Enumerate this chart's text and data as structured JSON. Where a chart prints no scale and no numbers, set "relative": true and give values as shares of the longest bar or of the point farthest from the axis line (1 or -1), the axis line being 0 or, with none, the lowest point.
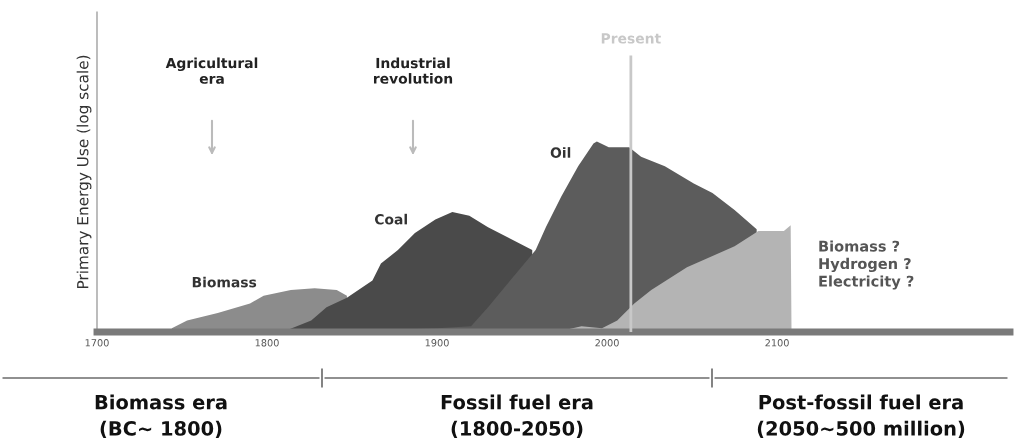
{
  "chart_data": {
    "type": "area",
    "relative": true,
    "ylabel": "Primary Energy Use (log scale)",
    "xlim": [
      1700,
      2237
    ],
    "xticks": [
      1700,
      1800,
      1900,
      2000,
      2100
    ],
    "grid": false,
    "legend": false,
    "tick_labels": "x",
    "series": [
      {
        "name": "Biomass",
        "color": "#8c8c8c",
        "x": [
          1744,
          1753,
          1771,
          1790,
          1798,
          1814,
          1828,
          1841,
          1847
        ],
        "values": [
          0.02,
          0.06,
          0.1,
          0.15,
          0.19,
          0.22,
          0.23,
          0.22,
          0.19
        ]
      },
      {
        "name": "Coal",
        "color": "#4a4a4a",
        "x": [
          1812,
          1826,
          1835,
          1847,
          1862,
          1867,
          1877,
          1887,
          1899,
          1909,
          1919,
          1930,
          1956
        ],
        "values": [
          0.01,
          0.06,
          0.13,
          0.18,
          0.27,
          0.36,
          0.43,
          0.52,
          0.59,
          0.63,
          0.61,
          0.55,
          0.43
        ]
      },
      {
        "name": "Oil",
        "color": "#5c5c5c",
        "x": [
          1850,
          1870,
          1900,
          1920,
          1930,
          1943,
          1958,
          1964,
          1973,
          1983,
          1992,
          1994,
          2001,
          2013,
          2020,
          2034,
          2051,
          2062,
          2075,
          2088
        ],
        "values": [
          0,
          0.01,
          0.02,
          0.03,
          0.13,
          0.27,
          0.43,
          0.55,
          0.71,
          0.87,
          0.99,
          1.0,
          0.97,
          0.97,
          0.92,
          0.87,
          0.78,
          0.73,
          0.64,
          0.54
        ]
      },
      {
        "color": "#b4b4b4",
        "x": [
          1970,
          1985,
          1997,
          2006,
          2016,
          2026,
          2047,
          2075,
          2089,
          2104,
          2108,
          2108.5
        ],
        "values": [
          0,
          0.03,
          0.02,
          0.06,
          0.15,
          0.22,
          0.34,
          0.45,
          0.53,
          0.53,
          0.56,
          0
        ]
      }
    ],
    "ref_lines": [
      {
        "axis": "x",
        "value": 2014,
        "label": "Present",
        "color": "#c8c8c8"
      }
    ],
    "annotations": [
      "Agricultural\nera",
      "Industrial\nrevolution",
      "Biomass ?\nHydrogen ?\nElectricity ?",
      "Biomass era\n(BC~ 1800)",
      "Fossil fuel era\n(1800-2050)",
      "Post-fossil fuel era\n(2050~500 million)"
    ]
  }
}
